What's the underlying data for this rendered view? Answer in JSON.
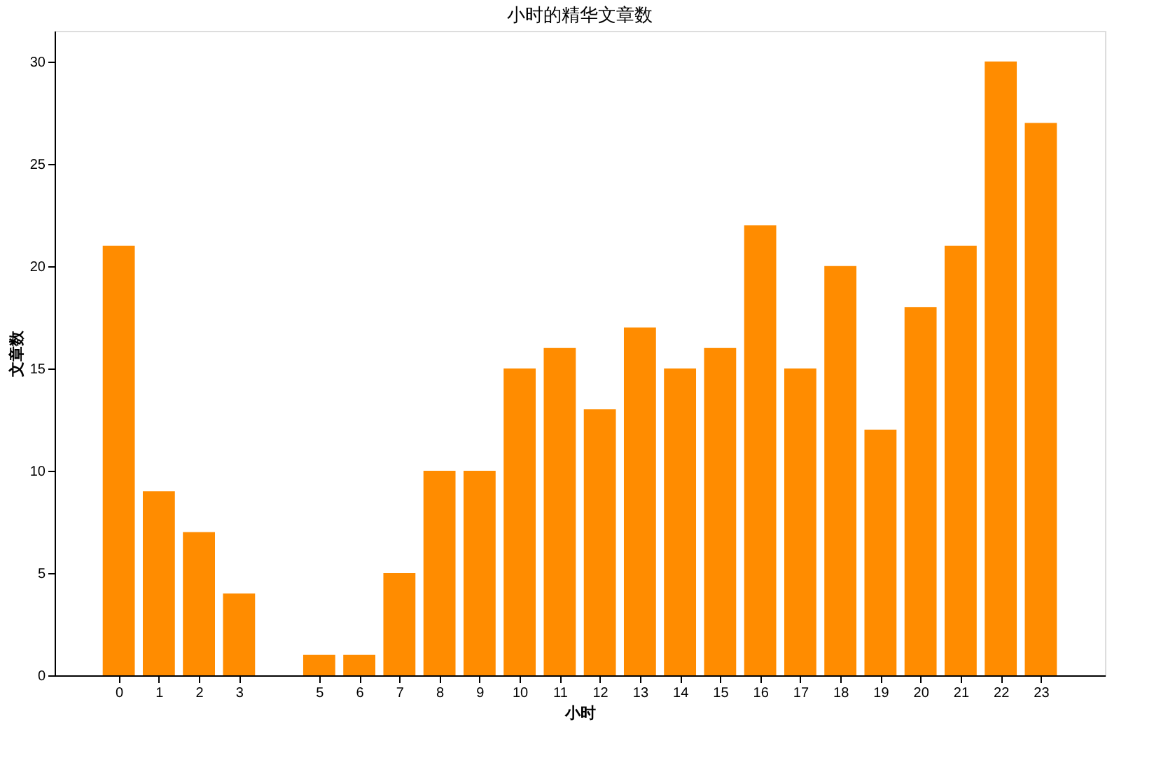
{
  "chart_data": {
    "type": "bar",
    "title": "小时的精华文章数",
    "xlabel": "小时",
    "ylabel": "文章数",
    "x": [
      0,
      1,
      2,
      3,
      5,
      6,
      7,
      8,
      9,
      10,
      11,
      12,
      13,
      14,
      15,
      16,
      17,
      18,
      19,
      20,
      21,
      22,
      23
    ],
    "values": [
      21,
      9,
      7,
      4,
      1,
      1,
      5,
      10,
      10,
      15,
      16,
      13,
      17,
      15,
      16,
      22,
      15,
      20,
      12,
      18,
      21,
      30,
      27
    ],
    "color": "#ff8c00",
    "xlim": [
      -1.6,
      24.6
    ],
    "xticks": [
      0,
      1,
      2,
      3,
      5,
      6,
      7,
      8,
      9,
      10,
      11,
      12,
      13,
      14,
      15,
      16,
      17,
      18,
      19,
      20,
      21,
      22,
      23
    ],
    "ylim": [
      0,
      31.5
    ],
    "yticks": [
      0,
      5,
      10,
      15,
      20,
      25,
      30
    ],
    "grid": false
  }
}
